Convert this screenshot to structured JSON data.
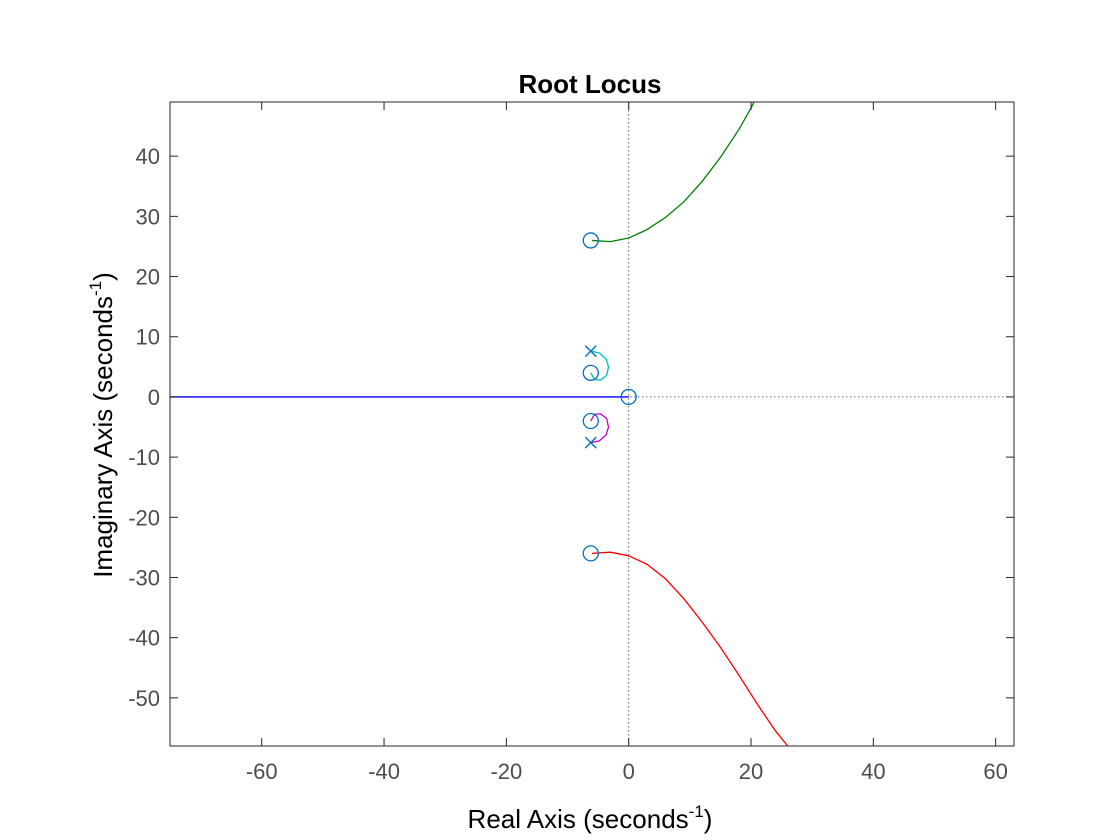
{
  "chart_data": {
    "type": "line",
    "title": "Root Locus",
    "xlabel": "Real Axis (seconds",
    "ylabel": "Imaginary Axis (seconds",
    "label_exponent": "-1",
    "label_close": ")",
    "xlim": [
      -75,
      63
    ],
    "ylim": [
      -58,
      49
    ],
    "xticks": [
      -60,
      -40,
      -20,
      0,
      20,
      40,
      60
    ],
    "yticks": [
      -50,
      -40,
      -30,
      -20,
      -10,
      0,
      10,
      20,
      30,
      40
    ],
    "grid": false,
    "box": true,
    "series": [
      {
        "color": "#0000ff",
        "points": [
          [
            0,
            0
          ],
          [
            -10,
            0
          ],
          [
            -25,
            0
          ],
          [
            -50,
            0
          ],
          [
            -75,
            0
          ]
        ]
      },
      {
        "color": "#008000",
        "points": [
          [
            -6,
            26
          ],
          [
            -3,
            25.8
          ],
          [
            0,
            26.4
          ],
          [
            3,
            27.8
          ],
          [
            6,
            29.8
          ],
          [
            9,
            32.4
          ],
          [
            12,
            35.8
          ],
          [
            15,
            39.8
          ],
          [
            18,
            44.4
          ],
          [
            20,
            48
          ],
          [
            20.5,
            49
          ]
        ]
      },
      {
        "color": "#ff0000",
        "points": [
          [
            -6,
            -26
          ],
          [
            -3,
            -25.8
          ],
          [
            0,
            -26.4
          ],
          [
            3,
            -27.8
          ],
          [
            6,
            -30.2
          ],
          [
            9,
            -33.5
          ],
          [
            12,
            -37.4
          ],
          [
            15,
            -41.6
          ],
          [
            18,
            -46.2
          ],
          [
            21,
            -51
          ],
          [
            24,
            -55.5
          ],
          [
            26,
            -58
          ]
        ]
      },
      {
        "color": "#00bfbf",
        "points": [
          [
            -6.2,
            7.6
          ],
          [
            -4.8,
            7.3
          ],
          [
            -3.7,
            6.3
          ],
          [
            -3.3,
            5
          ],
          [
            -3.6,
            3.6
          ],
          [
            -4.6,
            2.8
          ],
          [
            -5.6,
            2.9
          ],
          [
            -6.2,
            4
          ]
        ]
      },
      {
        "color": "#bf00bf",
        "points": [
          [
            -6.2,
            -4
          ],
          [
            -5.6,
            -2.9
          ],
          [
            -4.6,
            -2.8
          ],
          [
            -3.6,
            -3.6
          ],
          [
            -3.3,
            -5
          ],
          [
            -3.7,
            -6.3
          ],
          [
            -4.8,
            -7.3
          ],
          [
            -6.2,
            -7.6
          ]
        ]
      }
    ],
    "poles": [
      [
        -6.2,
        7.6
      ],
      [
        -6.2,
        -7.6
      ]
    ],
    "zeros": [
      [
        0,
        0
      ],
      [
        -6.2,
        26
      ],
      [
        -6.2,
        -26
      ],
      [
        -6.2,
        4
      ],
      [
        -6.2,
        -4
      ]
    ],
    "marker_color": "#0072bd",
    "zero_axis_color": "#666666"
  }
}
